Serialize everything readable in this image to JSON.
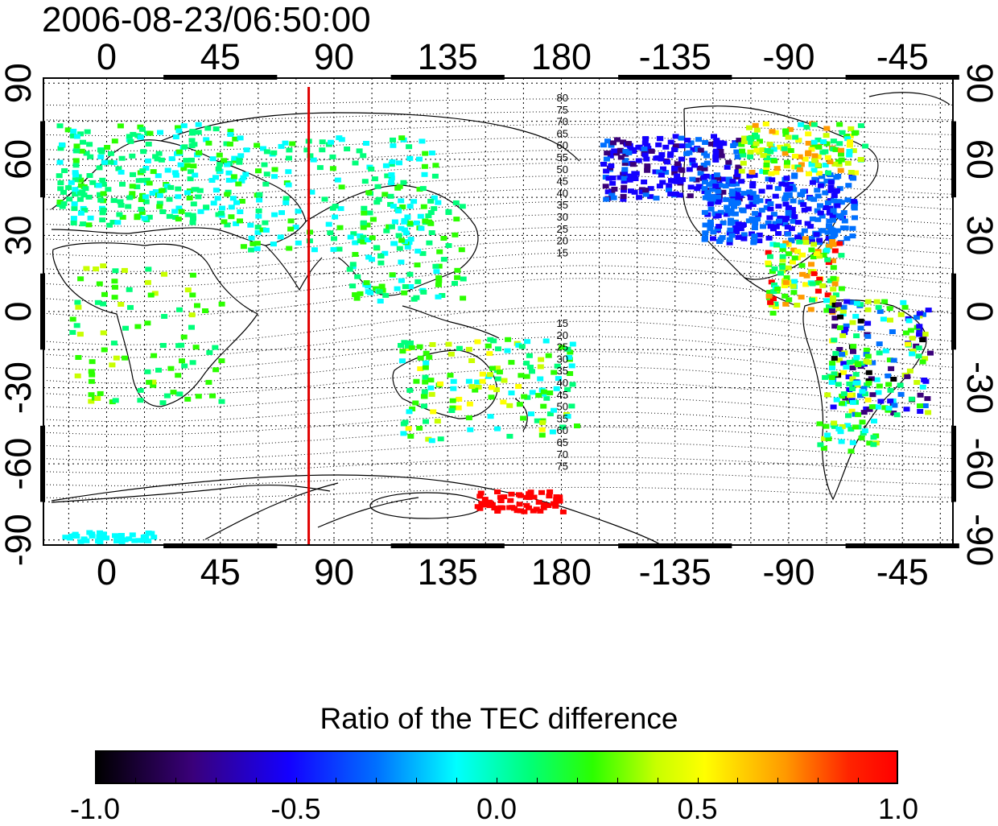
{
  "timestamp": "2006-08-23/06:50:00",
  "map": {
    "top_lon_labels": [
      "0",
      "45",
      "90",
      "135",
      "180",
      "-135",
      "-90",
      "-45"
    ],
    "bottom_lon_labels": [
      "0",
      "45",
      "90",
      "135",
      "180",
      "-135",
      "-90",
      "-45"
    ],
    "left_lat_labels": [
      "90",
      "60",
      "30",
      "0",
      "-30",
      "-60",
      "-90"
    ],
    "right_lat_labels": [
      "90",
      "60",
      "30",
      "0",
      "-30",
      "-60",
      "-90"
    ],
    "contour_labels_north": [
      "80",
      "75",
      "70",
      "65",
      "60",
      "55",
      "50",
      "45",
      "40",
      "35",
      "30",
      "25",
      "20",
      "15"
    ],
    "contour_labels_south": [
      "15",
      "20",
      "25",
      "30",
      "35",
      "40",
      "45",
      "50",
      "55",
      "60",
      "65",
      "70",
      "75"
    ],
    "marker_line_lon": 80,
    "marker_line_color": "#e00000"
  },
  "colorbar": {
    "title": "Ratio of the TEC difference",
    "tick_labels": [
      "-1.0",
      "-0.5",
      "0.0",
      "0.5",
      "1.0"
    ],
    "range": [
      -1.0,
      1.0
    ],
    "colors": [
      "#000000",
      "#3a007a",
      "#1400ff",
      "#0070ff",
      "#00ffff",
      "#00ff7a",
      "#2bff00",
      "#c8ff00",
      "#ffff00",
      "#ff9a00",
      "#ff0000"
    ]
  }
}
